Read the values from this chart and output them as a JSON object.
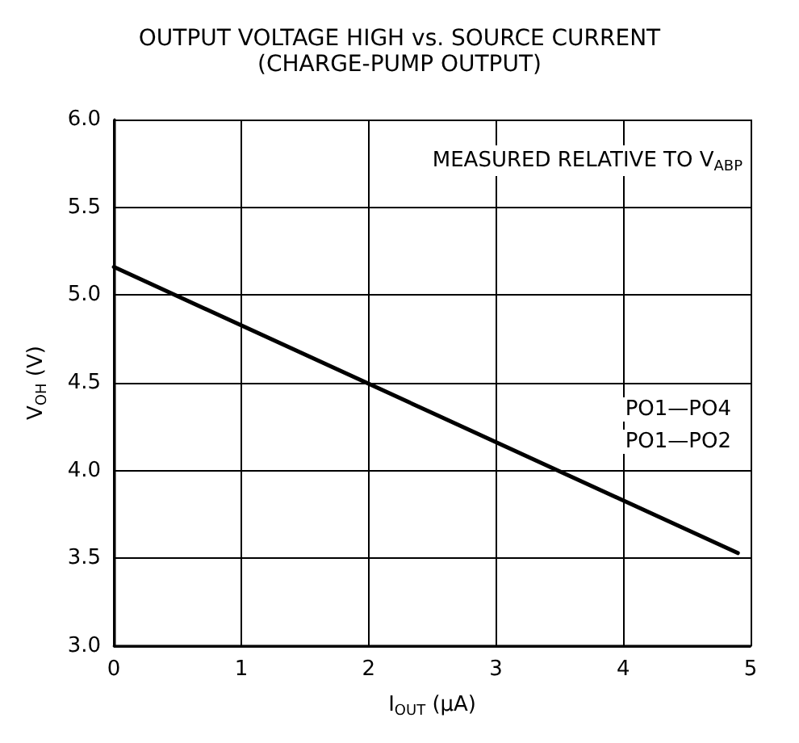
{
  "chart_data": {
    "type": "line",
    "title": "OUTPUT VOLTAGE HIGH vs. SOURCE CURRENT",
    "subtitle": "(CHARGE-PUMP OUTPUT)",
    "xlabel": "I$_{OUT}$ (μA)",
    "ylabel": "V$_{OH}$ (V)",
    "annotations": [
      "MEASURED RELATIVE TO V$_{ABP}$",
      "PO1—PO4",
      "PO1—PO2"
    ],
    "x": [
      0,
      4.9
    ],
    "series": [
      {
        "color": "#000000",
        "values": [
          5.16,
          3.53
        ]
      }
    ],
    "xlim": [
      0,
      5
    ],
    "xticks": [
      0,
      1,
      2,
      3,
      4,
      5
    ],
    "ylim": [
      3,
      6
    ],
    "yticks": [
      {
        "value": 3,
        "label": "3.0"
      },
      {
        "value": 3.5,
        "label": "3.5"
      },
      {
        "value": 4,
        "label": "4.0"
      },
      {
        "value": 4.5,
        "label": "4.5"
      },
      {
        "value": 5,
        "label": "5.0"
      },
      {
        "value": 5.5,
        "label": "5.5"
      },
      {
        "value": 6,
        "label": "6.0"
      }
    ],
    "grid": true,
    "marker": "none",
    "line_style": "solid"
  }
}
